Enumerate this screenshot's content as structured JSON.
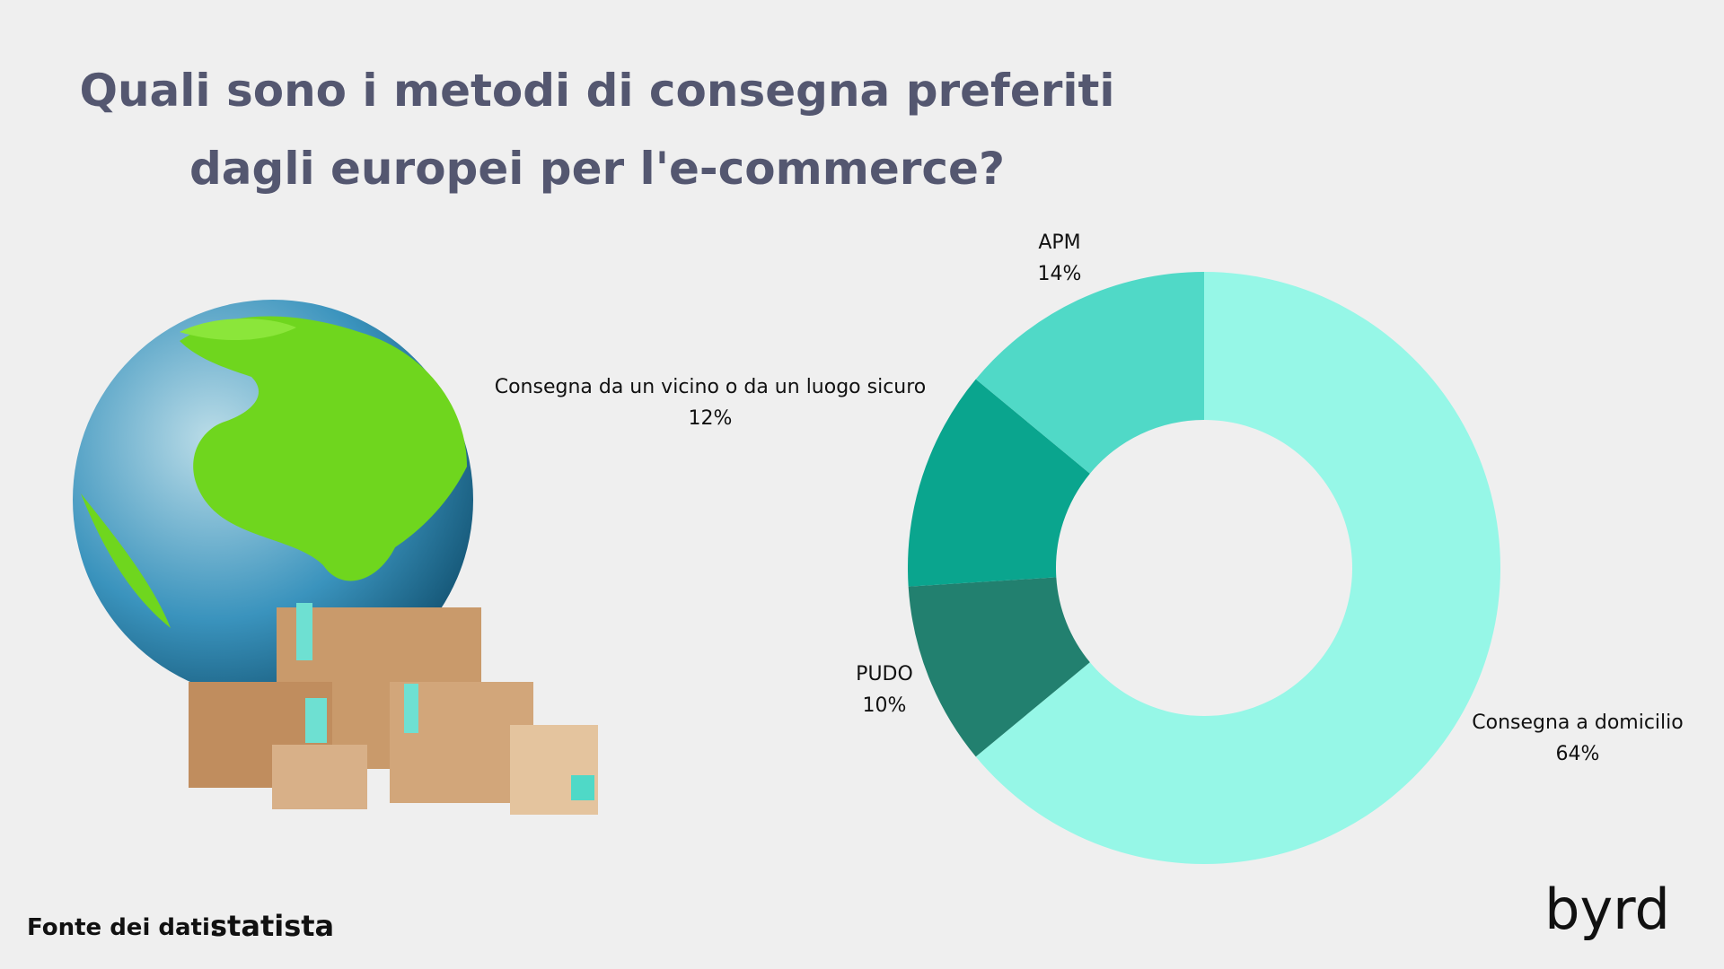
{
  "chart_data": {
    "type": "donut",
    "title": [
      "Quali sono i metodi di consegna preferiti",
      "dagli europei per l'e-commerce?"
    ],
    "categories": [
      "Consegna a domicilio",
      "PUDO",
      "Consegna da un vicino o da un luogo sicuro",
      "APM"
    ],
    "values": [
      64,
      10,
      12,
      14
    ],
    "value_labels": [
      "64%",
      "10%",
      "12%",
      "14%"
    ],
    "colors": [
      "#96f7e7",
      "#22806f",
      "#0aa58e",
      "#50d9c7"
    ]
  },
  "footer": {
    "source_label": "Fonte dei dati:",
    "source_name": "statista"
  },
  "logo": "byrd"
}
